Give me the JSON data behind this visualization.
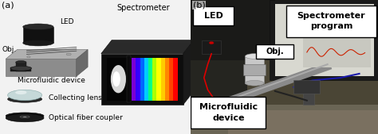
{
  "figure_width": 4.74,
  "figure_height": 1.69,
  "dpi": 100,
  "bg_color": "#f0f0f0",
  "panel_a_bg": "#e8e8e8",
  "panel_b_bg": "#5a5a5a",
  "font_size_small": 6.5,
  "font_size_panel": 8,
  "labels_a": {
    "panel": "(a)",
    "led": "LED",
    "obj": "Obj.",
    "microfluidic": "Microfluidic device",
    "collecting": "Collecting lens",
    "fiber": "Optical fiber coupler",
    "spectrometer": "Spectrometer"
  },
  "labels_b": {
    "panel": "(b)",
    "led": "LED",
    "obj": "Obj.",
    "spectrometer_prog": "Spectrometer\nprogram",
    "microfluidic": "Microfluidic\ndevice"
  },
  "spectrometer_colors": [
    "#7b00d4",
    "#3300ff",
    "#0066ff",
    "#00ccff",
    "#00ff88",
    "#aaff00",
    "#ffff00",
    "#ffcc00",
    "#ff8800",
    "#ff4400",
    "#ff0000"
  ],
  "divider_color": "#ffffff"
}
